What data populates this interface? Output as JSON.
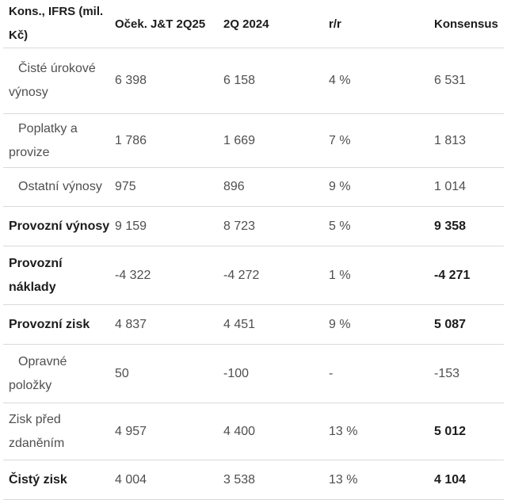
{
  "chart_data": {
    "type": "table",
    "columns": [
      "Kons., IFRS (mil.\nKč)",
      "Oček. J&T 2Q25",
      "2Q 2024",
      "r/r",
      "Konsensus"
    ],
    "rows": [
      {
        "label": "Čisté úrokové\nvýnosy",
        "values": [
          "6 398",
          "6 158",
          "4 %",
          "6 531"
        ],
        "indent": true,
        "bold_label": false,
        "bold_konsensus": false
      },
      {
        "label": "Poplatky a\nprovize",
        "values": [
          "1 786",
          "1 669",
          "7 %",
          "1 813"
        ],
        "indent": true,
        "bold_label": false,
        "bold_konsensus": false
      },
      {
        "label": "Ostatní výnosy",
        "values": [
          "975",
          "896",
          "9 %",
          "1 014"
        ],
        "indent": true,
        "bold_label": false,
        "bold_konsensus": false
      },
      {
        "label": "Provozní výnosy",
        "values": [
          "9 159",
          "8 723",
          "5 %",
          "9 358"
        ],
        "indent": false,
        "bold_label": true,
        "bold_konsensus": true
      },
      {
        "label": "Provozní\nnáklady",
        "values": [
          "-4 322",
          "-4 272",
          "1 %",
          "-4 271"
        ],
        "indent": false,
        "bold_label": true,
        "bold_konsensus": true
      },
      {
        "label": "Provozní zisk",
        "values": [
          "4 837",
          "4 451",
          "9 %",
          "5 087"
        ],
        "indent": false,
        "bold_label": true,
        "bold_konsensus": true
      },
      {
        "label": "Opravné\npoložky",
        "values": [
          "50",
          "-100",
          "-",
          "-153"
        ],
        "indent": true,
        "bold_label": false,
        "bold_konsensus": false
      },
      {
        "label": "Zisk před\nzdaněním",
        "values": [
          "4 957",
          "4 400",
          "13 %",
          "5 012"
        ],
        "indent": false,
        "bold_label": false,
        "bold_konsensus": true
      },
      {
        "label": "Čistý zisk",
        "values": [
          "4 004",
          "3 538",
          "13 %",
          "4 104"
        ],
        "indent": false,
        "bold_label": true,
        "bold_konsensus": true
      }
    ]
  },
  "colors": {
    "text_regular": "#4f4f4f",
    "text_emphasis": "#1c1c1c",
    "divider": "#d9d9d9",
    "background": "#ffffff"
  }
}
